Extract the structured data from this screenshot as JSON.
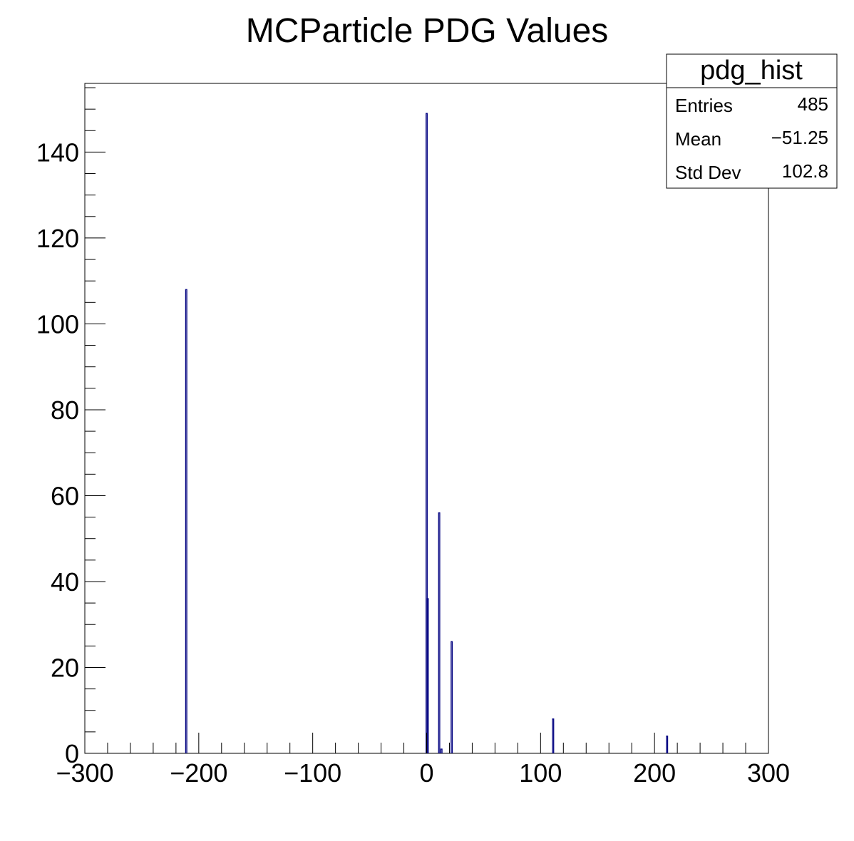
{
  "chart_data": {
    "type": "bar",
    "title": "MCParticle PDG Values",
    "xlabel": "",
    "ylabel": "",
    "xlim": [
      -300,
      300
    ],
    "ylim": [
      0,
      156
    ],
    "x_ticks": [
      -300,
      -200,
      -100,
      0,
      100,
      200,
      300
    ],
    "y_ticks": [
      0,
      20,
      40,
      60,
      80,
      100,
      120,
      140
    ],
    "x_tick_labels": [
      "−300",
      "−200",
      "−100",
      "0",
      "100",
      "200",
      "300"
    ],
    "y_tick_labels": [
      "0",
      "20",
      "40",
      "60",
      "80",
      "100",
      "120",
      "140"
    ],
    "bin_width": 1,
    "grid": false,
    "legend": "none",
    "line_color": "#000080",
    "x": [
      -211,
      0,
      1,
      11,
      13,
      22,
      111,
      211
    ],
    "values": [
      108,
      149,
      36,
      56,
      1,
      26,
      8,
      4
    ],
    "stats_box": {
      "name": "pdg_hist",
      "placement": "top-right",
      "rows": [
        {
          "label": "Entries",
          "value": "485"
        },
        {
          "label": "Mean",
          "value": "−51.25"
        },
        {
          "label": "Std Dev",
          "value": "102.8"
        }
      ]
    }
  }
}
